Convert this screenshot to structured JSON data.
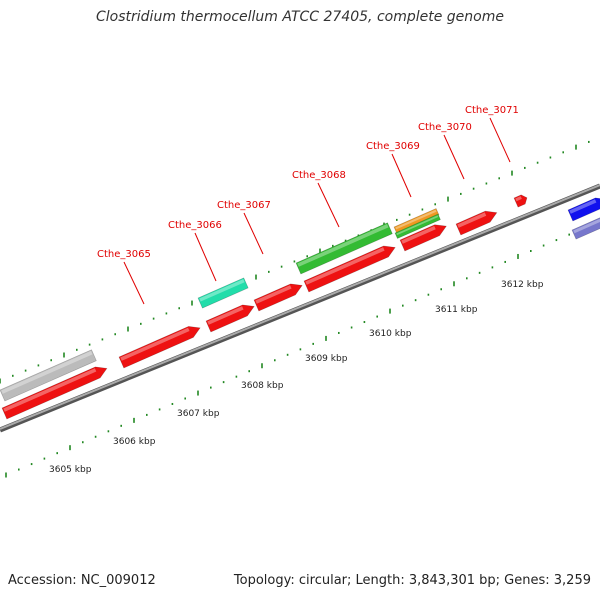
{
  "title": "Clostridium thermocellum ATCC 27405, complete genome",
  "footer": {
    "accession": "Accession: NC_009012",
    "summary": "Topology: circular; Length: 3,843,301 bp; Genes: 3,259"
  },
  "colors": {
    "cds_red": "#ee1111",
    "rna_green": "#33bb33",
    "teal": "#22ddaa",
    "orange": "#ee9922",
    "grey": "#bbbbbb",
    "blue": "#1111ee",
    "lavender": "#7777cc",
    "backbone": "#888888",
    "tick_green": "#228822",
    "label_red": "#e00000"
  },
  "gene_labels": [
    {
      "text": "Cthe_3065"
    },
    {
      "text": "Cthe_3066"
    },
    {
      "text": "Cthe_3067"
    },
    {
      "text": "Cthe_3068"
    },
    {
      "text": "Cthe_3069"
    },
    {
      "text": "Cthe_3070"
    },
    {
      "text": "Cthe_3071"
    }
  ],
  "kbp_labels": [
    "3605 kbp",
    "3606 kbp",
    "3607 kbp",
    "3608 kbp",
    "3609 kbp",
    "3610 kbp",
    "3611 kbp",
    "3612 kbp"
  ]
}
